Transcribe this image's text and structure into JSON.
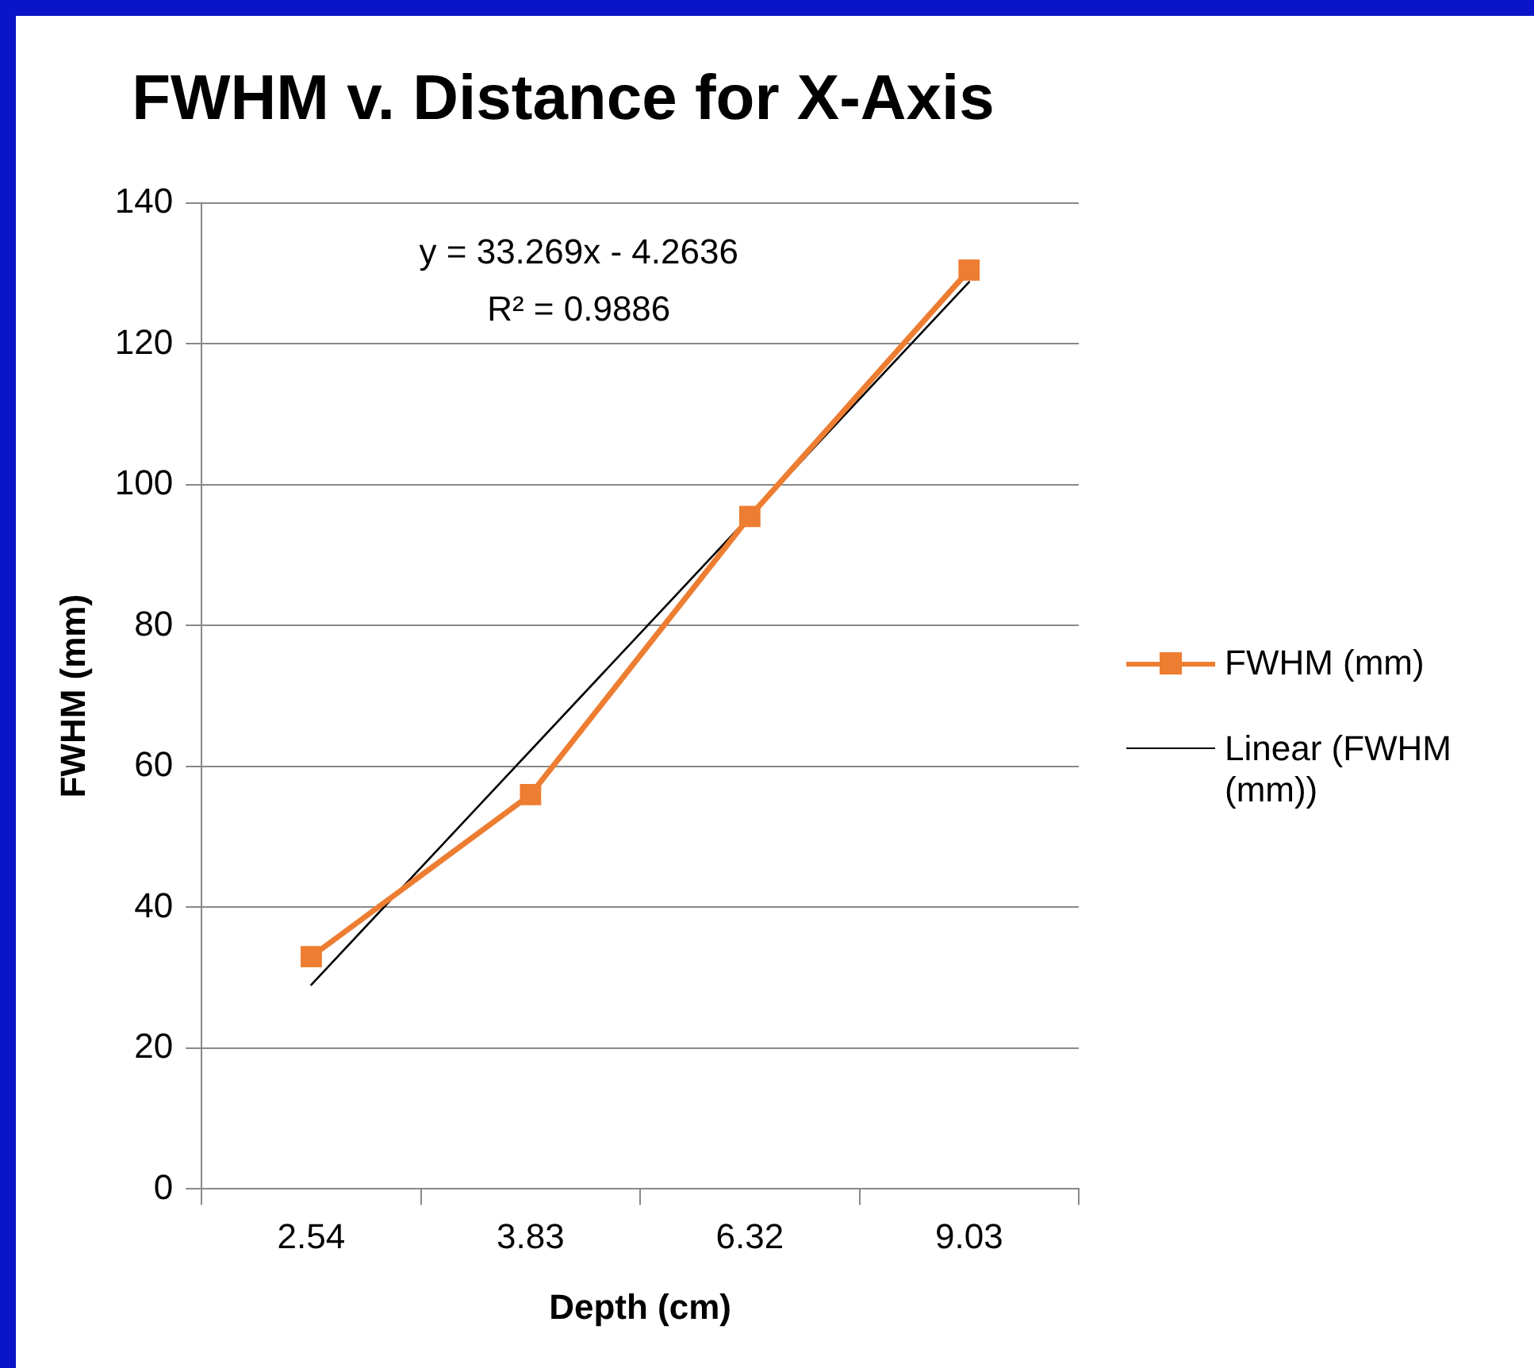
{
  "chart_data": {
    "type": "line",
    "title": "FWHM v. Distance for X-Axis",
    "xlabel": "Depth (cm)",
    "ylabel": "FWHM (mm)",
    "categories": [
      "2.54",
      "3.83",
      "6.32",
      "9.03"
    ],
    "series": [
      {
        "name": "FWHM (mm)",
        "color": "#ed7d31",
        "values": [
          33,
          56,
          95.5,
          130.5
        ]
      },
      {
        "name": "Linear (FWHM (mm))",
        "type": "line",
        "color": "#000000",
        "marker": "none",
        "x": [
          "2.54",
          "9.03"
        ],
        "values": [
          29.0,
          128.8
        ]
      }
    ],
    "ylim": [
      0,
      140
    ],
    "yticks": [
      0,
      20,
      40,
      60,
      80,
      100,
      120,
      140
    ],
    "grid": "y",
    "legend": "right",
    "marker": "square",
    "annotations": [
      "y = 33.269x - 4.2636",
      "R² = 0.9886"
    ]
  }
}
